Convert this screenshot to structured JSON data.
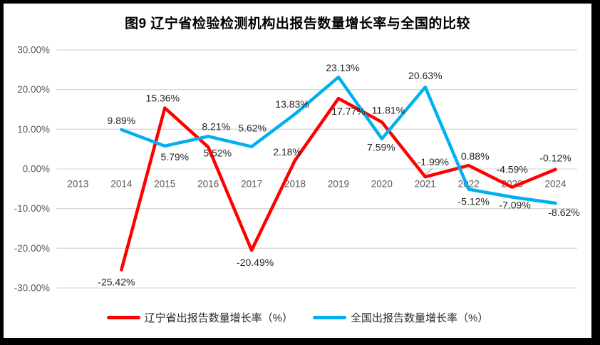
{
  "chart_data": {
    "type": "line",
    "title": "图9  辽宁省检验检测机构出报告数量增长率与全国的比较",
    "categories": [
      "2013",
      "2014",
      "2015",
      "2016",
      "2017",
      "2018",
      "2019",
      "2020",
      "2021",
      "2022",
      "2023",
      "2024"
    ],
    "series": [
      {
        "name": "辽宁省出报告数量增长率（%）",
        "color": "#FF0000",
        "values": [
          null,
          -25.42,
          15.36,
          5.52,
          -20.49,
          2.18,
          17.77,
          11.81,
          -1.99,
          0.88,
          -4.59,
          -0.12
        ],
        "labels": [
          "",
          "-25.42%",
          "15.36%",
          "5.52%",
          "-20.49%",
          "2.18%",
          "17.77%",
          "11.81%",
          "-1.99%",
          "0.88%",
          "-4.59%",
          "-0.12%"
        ],
        "label_offsets": [
          [
            0,
            0
          ],
          [
            -7,
            22
          ],
          [
            -3,
            -9
          ],
          [
            13,
            13
          ],
          [
            5,
            22
          ],
          [
            -11,
            -7
          ],
          [
            14,
            23
          ],
          [
            9,
            -12
          ],
          [
            11,
            -16
          ],
          [
            9,
            -8
          ],
          [
            0,
            -20
          ],
          [
            0,
            -11
          ]
        ]
      },
      {
        "name": "全国出报告数量增长率（%）",
        "color": "#00B0F0",
        "values": [
          null,
          9.89,
          5.79,
          8.21,
          5.62,
          13.83,
          23.13,
          7.59,
          20.63,
          -5.12,
          -7.09,
          -8.62
        ],
        "labels": [
          "",
          "9.89%",
          "5.79%",
          "8.21%",
          "5.62%",
          "13.83%",
          "23.13%",
          "7.59%",
          "20.63%",
          "-5.12%",
          "-7.09%",
          "-8.62%"
        ],
        "label_offsets": [
          [
            0,
            0
          ],
          [
            0,
            -8
          ],
          [
            14,
            20
          ],
          [
            11,
            -9
          ],
          [
            1,
            -21
          ],
          [
            -4,
            -9
          ],
          [
            6,
            -8
          ],
          [
            -1,
            17
          ],
          [
            0,
            -11
          ],
          [
            7,
            22
          ],
          [
            4,
            16
          ],
          [
            12,
            18
          ]
        ]
      }
    ],
    "y_ticks": [
      {
        "value": 30,
        "label": "30.00%"
      },
      {
        "value": 20,
        "label": "20.00%"
      },
      {
        "value": 10,
        "label": "10.00%"
      },
      {
        "value": 0,
        "label": "0.00%"
      },
      {
        "value": -10,
        "label": "-10.00%"
      },
      {
        "value": -20,
        "label": "-20.00%"
      },
      {
        "value": -30,
        "label": "-30.00%"
      }
    ],
    "ylim": [
      -30,
      30
    ],
    "grid": true,
    "legend_position": "bottom",
    "colors": {
      "gridline": "#D9D9D9",
      "axis_text": "#595959",
      "data_label_text": "#262626",
      "leader_line": "#A6A6A6",
      "frame": "#000000",
      "background": "#FFFFFF"
    }
  }
}
